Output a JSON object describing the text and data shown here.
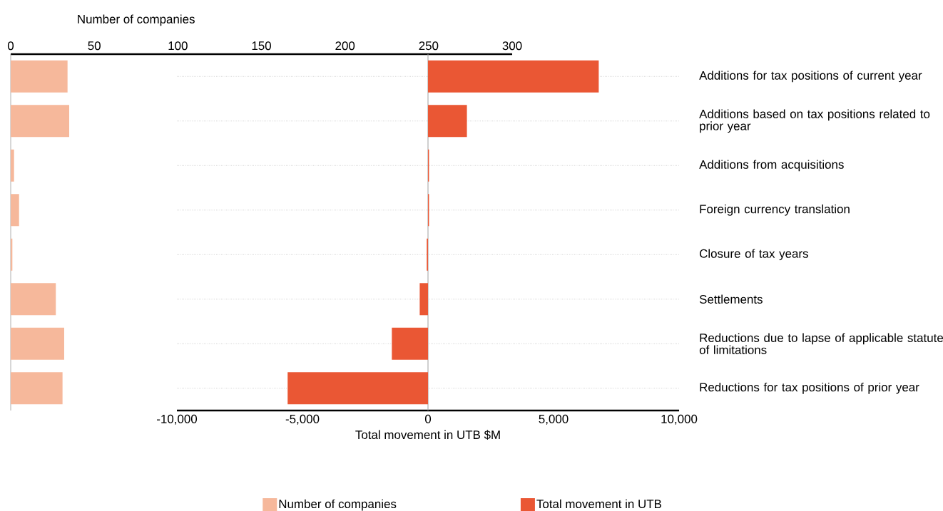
{
  "chart_data": [
    {
      "type": "bar",
      "orientation": "horizontal",
      "xlabel": "Number of companies",
      "categories": [
        null,
        null,
        null,
        null,
        null,
        null,
        null,
        null
      ],
      "series": [
        {
          "name": "Number of companies",
          "color": "#f6b89b",
          "values": [
            34,
            35,
            2,
            5,
            1,
            27,
            32,
            31
          ]
        }
      ],
      "xlim": [
        0,
        300
      ],
      "xticks": [
        0,
        50,
        100,
        150,
        200,
        250,
        300
      ],
      "tick_labels": "x",
      "grid": false,
      "legend": "bottom"
    },
    {
      "type": "bar",
      "orientation": "horizontal",
      "xlabel": "Total movement in UTB $M",
      "categories": [
        "Additions for tax positions of current year",
        "Additions based on tax positions related to prior year",
        "Additions from acquisitions",
        "Foreign currency translation",
        "Closure of tax years",
        "Settlements",
        "Reductions due to lapse of applicable statute of limitations",
        "Reductions for tax positions of prior year"
      ],
      "series": [
        {
          "name": "Total movement in UTB",
          "color": "#ea5734",
          "values": [
            6800,
            1550,
            40,
            40,
            -50,
            -330,
            -1440,
            -5590
          ]
        }
      ],
      "xlim": [
        -10000,
        10000
      ],
      "xticks": [
        {
          "value": -10000,
          "label": "-10,000"
        },
        {
          "value": -5000,
          "label": "-5,000"
        },
        0,
        {
          "value": 5000,
          "label": "5,000"
        },
        {
          "value": 10000,
          "label": "10,000"
        }
      ],
      "ref_lines": [
        {
          "axis": "x",
          "value": 0,
          "color": "#a0a0a0"
        }
      ],
      "grid": "y",
      "legend": "bottom"
    }
  ]
}
